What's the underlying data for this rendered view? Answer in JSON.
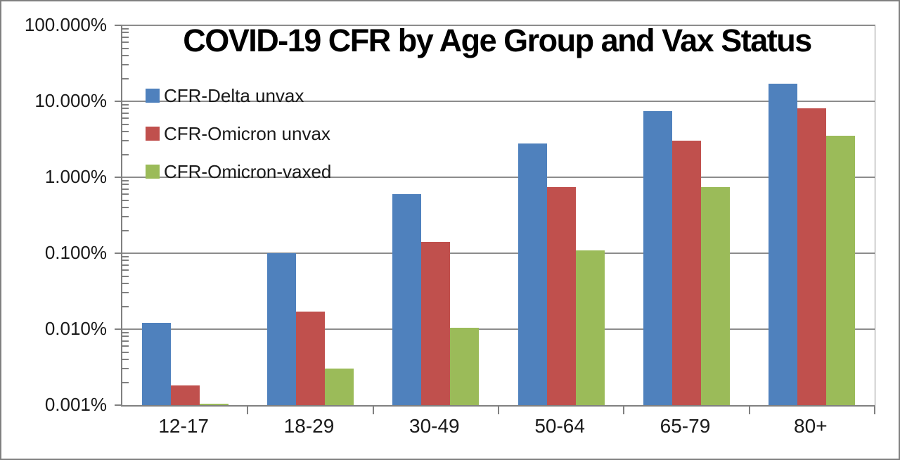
{
  "page": {
    "background_color": "#FFFFFF",
    "frame_border_color": "#808080"
  },
  "chart_data": {
    "type": "bar",
    "title": "COVID-19 CFR by Age Group and Vax Status",
    "scale": "log",
    "categories": [
      "12-17",
      "18-29",
      "30-49",
      "50-64",
      "65-79",
      "80+"
    ],
    "series": [
      {
        "name": "CFR-Delta unvax",
        "color": "#4F81BD",
        "values": [
          0.012,
          0.1,
          0.6,
          2.8,
          7.5,
          17
        ]
      },
      {
        "name": "CFR-Omicron unvax",
        "color": "#C0504D",
        "values": [
          0.0018,
          0.017,
          0.14,
          0.75,
          3.0,
          8.0
        ]
      },
      {
        "name": "CFR-Omicron-vaxed",
        "color": "#9BBB59",
        "values": [
          0.001,
          0.003,
          0.0105,
          0.11,
          0.75,
          3.5
        ]
      }
    ],
    "unit": "%",
    "ylim": [
      0.001,
      100
    ],
    "y_tick_labels": [
      "100.000%",
      "10.000%",
      "1.000%",
      "0.100%",
      "0.010%",
      "0.001%"
    ],
    "xlabel": "",
    "ylabel": "",
    "grid": "horizontal-major-with-log-minor-ticks",
    "legend_position": "inside-top-left",
    "axis_color": "#808080",
    "gridline_color": "#8c8c8c",
    "text_color": "#1A1A1A"
  }
}
